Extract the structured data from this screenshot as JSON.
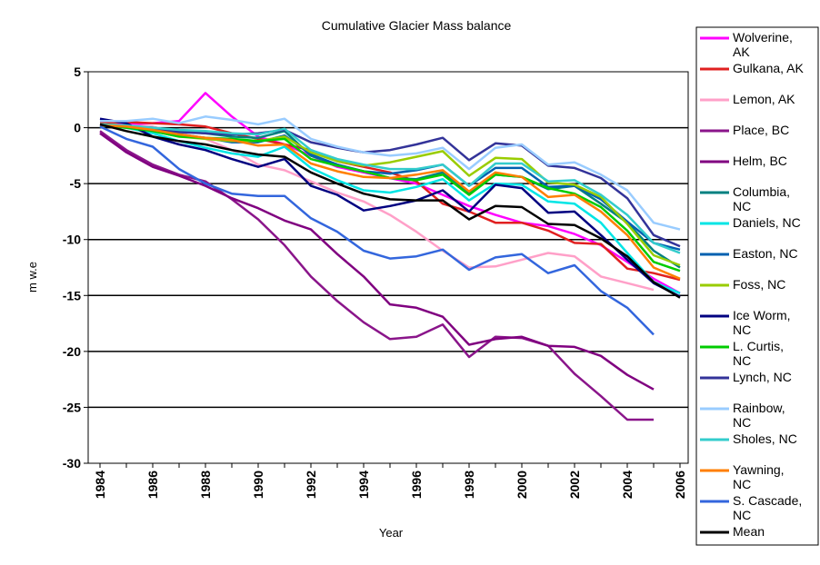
{
  "chart_data": {
    "type": "line",
    "title": "Cumulative Glacier Mass balance",
    "xlabel": "Year",
    "ylabel": "m w.e",
    "ylim": [
      -30,
      5
    ],
    "xlim": [
      1984,
      2006
    ],
    "yticks": [
      5,
      0,
      -5,
      -10,
      -15,
      -20,
      -25,
      -30
    ],
    "xticks": [
      1984,
      1986,
      1988,
      1990,
      1992,
      1994,
      1996,
      1998,
      2000,
      2002,
      2004,
      2006
    ],
    "grid": "horizontal",
    "legend_position": "right",
    "series": [
      {
        "name": "Wolverine, AK",
        "color": "#FF00FF",
        "x": [
          1984,
          1985,
          1986,
          1987,
          1988,
          1989,
          1990,
          1991,
          1992,
          1993,
          1994,
          1995,
          1996,
          1997,
          1998,
          1999,
          2000,
          2001,
          2002,
          2003,
          2004,
          2005,
          2006
        ],
        "values": [
          0.2,
          0.3,
          0.4,
          0.6,
          3.1,
          1.0,
          -0.8,
          -1.5,
          -2.5,
          -3.5,
          -4.0,
          -4.5,
          -5.0,
          -6.0,
          -7.0,
          -7.8,
          -8.5,
          -8.8,
          -9.5,
          -10.5,
          -12.0,
          -13.5,
          -14.8
        ]
      },
      {
        "name": "Gulkana, AK",
        "color": "#E02020",
        "x": [
          1984,
          1985,
          1986,
          1987,
          1988,
          1989,
          1990,
          1991,
          1992,
          1993,
          1994,
          1995,
          1996,
          1997,
          1998,
          1999,
          2000,
          2001,
          2002,
          2003,
          2004,
          2005,
          2006
        ],
        "values": [
          0.4,
          0.5,
          0.4,
          0.3,
          0.1,
          -0.5,
          -1.0,
          -1.5,
          -2.0,
          -3.0,
          -3.5,
          -4.0,
          -4.8,
          -6.8,
          -7.5,
          -8.5,
          -8.5,
          -9.2,
          -10.3,
          -10.4,
          -12.6,
          -13.0,
          -13.6
        ]
      },
      {
        "name": "Lemon, AK",
        "color": "#FFA0C8",
        "x": [
          1984,
          1985,
          1986,
          1987,
          1988,
          1989,
          1990,
          1991,
          1992,
          1993,
          1994,
          1995,
          1996,
          1997,
          1998,
          1999,
          2000,
          2001,
          2002,
          2003,
          2004,
          2005
        ],
        "values": [
          0.3,
          0.2,
          0.1,
          -0.5,
          -1.0,
          -2.0,
          -3.3,
          -3.8,
          -4.8,
          -5.8,
          -6.6,
          -7.8,
          -9.3,
          -11.0,
          -12.5,
          -12.4,
          -11.8,
          -11.2,
          -11.5,
          -13.3,
          -13.9,
          -14.5
        ]
      },
      {
        "name": "Place, BC",
        "color": "#8A158A",
        "x": [
          1984,
          1985,
          1986,
          1987,
          1988,
          1989,
          1990,
          1991,
          1992,
          1993,
          1994,
          1995,
          1996,
          1997,
          1998,
          1999,
          2000,
          2001,
          2002,
          2003,
          2004,
          2005
        ],
        "values": [
          -0.3,
          -2.0,
          -3.3,
          -4.2,
          -4.8,
          -6.4,
          -8.2,
          -10.5,
          -13.3,
          -15.5,
          -17.4,
          -18.9,
          -18.7,
          -17.6,
          -20.5,
          -18.7,
          -18.8,
          -19.5,
          -22.0,
          -24.0,
          -26.1,
          -26.1
        ]
      },
      {
        "name": "Helm, BC",
        "color": "#800080",
        "x": [
          1984,
          1985,
          1986,
          1987,
          1988,
          1989,
          1990,
          1991,
          1992,
          1993,
          1994,
          1995,
          1996,
          1997,
          1998,
          1999,
          2000,
          2001,
          2002,
          2003,
          2004,
          2005
        ],
        "values": [
          -0.5,
          -2.2,
          -3.5,
          -4.3,
          -5.2,
          -6.3,
          -7.2,
          -8.3,
          -9.1,
          -11.3,
          -13.3,
          -15.8,
          -16.1,
          -16.9,
          -19.4,
          -18.9,
          -18.7,
          -19.5,
          -19.6,
          -20.4,
          -22.1,
          -23.4
        ]
      },
      {
        "name": "Columbia, NC",
        "color": "#008080",
        "x": [
          1984,
          1985,
          1986,
          1987,
          1988,
          1989,
          1990,
          1991,
          1992,
          1993,
          1994,
          1995,
          1996,
          1997,
          1998,
          1999,
          2000,
          2001,
          2002,
          2003,
          2004,
          2005,
          2006
        ],
        "values": [
          0.2,
          0.1,
          0.0,
          -0.3,
          -0.5,
          -0.8,
          -0.9,
          -0.3,
          -2.5,
          -3.3,
          -3.9,
          -4.5,
          -4.6,
          -4.0,
          -5.9,
          -4.2,
          -4.4,
          -5.5,
          -5.2,
          -6.8,
          -8.5,
          -11.0,
          -12.5
        ]
      },
      {
        "name": "Daniels, NC",
        "color": "#00E5E5",
        "x": [
          1984,
          1985,
          1986,
          1987,
          1988,
          1989,
          1990,
          1991,
          1992,
          1993,
          1994,
          1995,
          1996,
          1997,
          1998,
          1999,
          2000,
          2001,
          2002,
          2003,
          2004,
          2005,
          2006
        ],
        "values": [
          0.2,
          0.0,
          -0.5,
          -1.2,
          -1.8,
          -2.3,
          -2.6,
          -1.7,
          -3.6,
          -4.7,
          -5.6,
          -5.8,
          -5.3,
          -4.6,
          -6.5,
          -5.0,
          -5.1,
          -6.6,
          -6.8,
          -8.5,
          -11.2,
          -13.8,
          -14.8
        ]
      },
      {
        "name": "Easton, NC",
        "color": "#0060B0",
        "x": [
          1984,
          1985,
          1986,
          1987,
          1988,
          1989,
          1990,
          1991,
          1992,
          1993,
          1994,
          1995,
          1996,
          1997,
          1998,
          1999,
          2000,
          2001,
          2002,
          2003,
          2004,
          2005,
          2006
        ],
        "values": [
          0.3,
          0.1,
          -0.2,
          -0.6,
          -0.9,
          -1.3,
          -1.3,
          -0.7,
          -2.4,
          -3.3,
          -3.9,
          -4.1,
          -3.8,
          -3.3,
          -5.2,
          -3.6,
          -3.6,
          -5.3,
          -5.2,
          -6.4,
          -8.4,
          -10.3,
          -10.9
        ]
      },
      {
        "name": "Foss, NC",
        "color": "#99CC00",
        "x": [
          1984,
          1985,
          1986,
          1987,
          1988,
          1989,
          1990,
          1991,
          1992,
          1993,
          1994,
          1995,
          1996,
          1997,
          1998,
          1999,
          2000,
          2001,
          2002,
          2003,
          2004,
          2005,
          2006
        ],
        "values": [
          0.3,
          0.2,
          -0.3,
          -0.8,
          -1.0,
          -1.2,
          -1.2,
          -0.8,
          -2.2,
          -3.0,
          -3.4,
          -3.1,
          -2.6,
          -2.1,
          -4.3,
          -2.7,
          -2.8,
          -4.9,
          -5.1,
          -6.2,
          -8.6,
          -11.4,
          -12.3
        ]
      },
      {
        "name": "Ice Worm, NC",
        "color": "#000080",
        "x": [
          1984,
          1985,
          1986,
          1987,
          1988,
          1989,
          1990,
          1991,
          1992,
          1993,
          1994,
          1995,
          1996,
          1997,
          1998,
          1999,
          2000,
          2001,
          2002,
          2003,
          2004,
          2005,
          2006
        ],
        "values": [
          0.8,
          0.4,
          -0.8,
          -1.5,
          -2.0,
          -2.8,
          -3.5,
          -2.8,
          -5.2,
          -6.0,
          -7.4,
          -7.0,
          -6.5,
          -5.6,
          -7.5,
          -5.1,
          -5.4,
          -7.6,
          -7.5,
          -9.6,
          -11.8,
          -13.9,
          -15.1
        ]
      },
      {
        "name": "L. Curtis, NC",
        "color": "#00CC00",
        "x": [
          1984,
          1985,
          1986,
          1987,
          1988,
          1989,
          1990,
          1991,
          1992,
          1993,
          1994,
          1995,
          1996,
          1997,
          1998,
          1999,
          2000,
          2001,
          2002,
          2003,
          2004,
          2005,
          2006
        ],
        "values": [
          0.2,
          0.0,
          -0.3,
          -0.8,
          -0.9,
          -1.0,
          -1.2,
          -1.0,
          -2.8,
          -3.4,
          -3.9,
          -4.5,
          -4.7,
          -4.2,
          -6.0,
          -4.2,
          -4.4,
          -5.4,
          -5.9,
          -7.1,
          -9.2,
          -12.0,
          -12.8
        ]
      },
      {
        "name": "Lynch, NC",
        "color": "#333399",
        "x": [
          1984,
          1985,
          1986,
          1987,
          1988,
          1989,
          1990,
          1991,
          1992,
          1993,
          1994,
          1995,
          1996,
          1997,
          1998,
          1999,
          2000,
          2001,
          2002,
          2003,
          2004,
          2005,
          2006
        ],
        "values": [
          0.2,
          0.1,
          -0.2,
          -0.4,
          -0.5,
          -0.6,
          -0.5,
          -0.2,
          -1.3,
          -1.8,
          -2.2,
          -2.0,
          -1.5,
          -0.9,
          -2.9,
          -1.4,
          -1.6,
          -3.4,
          -3.6,
          -4.5,
          -6.3,
          -9.6,
          -10.6
        ]
      },
      {
        "name": "Rainbow, NC",
        "color": "#99CCFF",
        "x": [
          1984,
          1985,
          1986,
          1987,
          1988,
          1989,
          1990,
          1991,
          1992,
          1993,
          1994,
          1995,
          1996,
          1997,
          1998,
          1999,
          2000,
          2001,
          2002,
          2003,
          2004,
          2005,
          2006
        ],
        "values": [
          0.6,
          0.6,
          0.8,
          0.4,
          1.0,
          0.7,
          0.3,
          0.8,
          -1.0,
          -1.7,
          -2.2,
          -2.5,
          -2.3,
          -1.8,
          -3.7,
          -1.8,
          -1.5,
          -3.3,
          -3.1,
          -4.2,
          -5.6,
          -8.5,
          -9.1
        ]
      },
      {
        "name": "Sholes, NC",
        "color": "#33CCCC",
        "x": [
          1984,
          1985,
          1986,
          1987,
          1988,
          1989,
          1990,
          1991,
          1992,
          1993,
          1994,
          1995,
          1996,
          1997,
          1998,
          1999,
          2000,
          2001,
          2002,
          2003,
          2004,
          2005,
          2006
        ],
        "values": [
          0.3,
          0.2,
          0.0,
          -0.2,
          -0.3,
          -0.5,
          -0.6,
          -0.1,
          -2.0,
          -2.8,
          -3.3,
          -3.7,
          -3.7,
          -3.3,
          -5.2,
          -3.2,
          -3.2,
          -4.8,
          -4.7,
          -6.0,
          -7.8,
          -10.3,
          -11.2
        ]
      },
      {
        "name": "Yawning, NC",
        "color": "#FF7F00",
        "x": [
          1984,
          1985,
          1986,
          1987,
          1988,
          1989,
          1990,
          1991,
          1992,
          1993,
          1994,
          1995,
          1996,
          1997,
          1998,
          1999,
          2000,
          2001,
          2002,
          2003,
          2004,
          2005,
          2006
        ],
        "values": [
          0.2,
          0.1,
          -0.2,
          -0.6,
          -0.9,
          -1.1,
          -1.6,
          -1.5,
          -3.2,
          -3.9,
          -4.4,
          -4.5,
          -4.2,
          -3.8,
          -5.7,
          -4.0,
          -4.4,
          -6.2,
          -6.0,
          -7.5,
          -9.6,
          -12.5,
          -13.5
        ]
      },
      {
        "name": "S. Cascade, NC",
        "color": "#3366DD",
        "x": [
          1984,
          1985,
          1986,
          1987,
          1988,
          1989,
          1990,
          1991,
          1992,
          1993,
          1994,
          1995,
          1996,
          1997,
          1998,
          1999,
          2000,
          2001,
          2002,
          2003,
          2004,
          2005
        ],
        "values": [
          0.1,
          -1.0,
          -1.7,
          -3.7,
          -5.0,
          -5.9,
          -6.1,
          -6.1,
          -8.1,
          -9.3,
          -11.0,
          -11.7,
          -11.5,
          -10.9,
          -12.7,
          -11.6,
          -11.3,
          -13.0,
          -12.3,
          -14.6,
          -16.1,
          -18.5
        ]
      },
      {
        "name": "Mean",
        "color": "#000000",
        "x": [
          1984,
          1985,
          1986,
          1987,
          1988,
          1989,
          1990,
          1991,
          1992,
          1993,
          1994,
          1995,
          1996,
          1997,
          1998,
          1999,
          2000,
          2001,
          2002,
          2003,
          2004,
          2005,
          2006
        ],
        "values": [
          0.3,
          -0.3,
          -0.8,
          -1.2,
          -1.5,
          -2.0,
          -2.4,
          -2.6,
          -4.0,
          -5.0,
          -5.9,
          -6.4,
          -6.5,
          -6.5,
          -8.2,
          -7.0,
          -7.1,
          -8.6,
          -8.7,
          -9.9,
          -11.5,
          -13.8,
          -15.2
        ]
      }
    ],
    "legend_lines": [
      [
        "Wolverine,",
        "AK"
      ],
      [
        "Gulkana, AK"
      ],
      [
        "Lemon, AK"
      ],
      [
        "Place, BC"
      ],
      [
        "Helm, BC"
      ],
      [
        "Columbia,",
        "NC"
      ],
      [
        "Daniels, NC"
      ],
      [
        "Easton, NC"
      ],
      [
        "Foss, NC"
      ],
      [
        "Ice Worm,",
        "NC"
      ],
      [
        "L. Curtis,",
        "NC"
      ],
      [
        "Lynch, NC"
      ],
      [
        "Rainbow,",
        "NC"
      ],
      [
        "Sholes, NC"
      ],
      [
        "Yawning,",
        "NC"
      ],
      [
        "S. Cascade,",
        "NC"
      ],
      [
        "Mean"
      ]
    ]
  }
}
